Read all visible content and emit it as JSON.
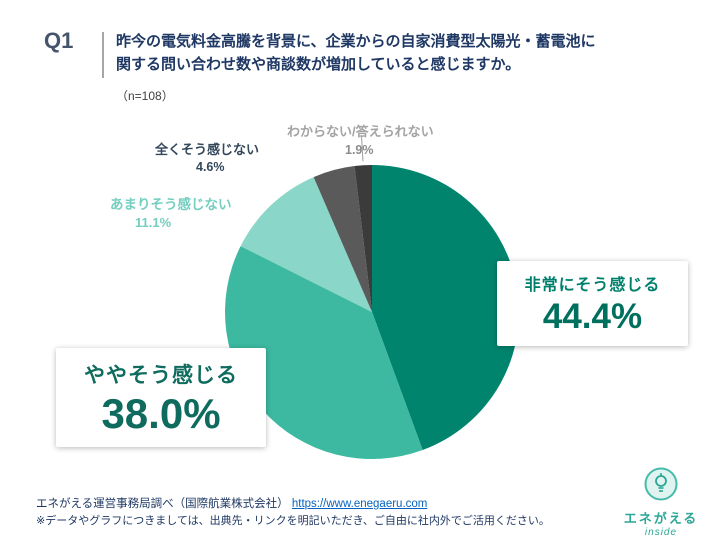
{
  "header": {
    "q_label": "Q1",
    "question": "昨今の電気料金高騰を背景に、企業からの自家消費型太陽光・蓄電池に\n関する問い合わせ数や商談数が増加していると感じますか。",
    "sample_size": "（n=108）"
  },
  "chart_data": {
    "type": "pie",
    "title": "昨今の電気料金高騰を背景に、企業からの自家消費型太陽光・蓄電池に関する問い合わせ数や商談数が増加していると感じますか。",
    "sample_size": "n=108",
    "labels": [
      "非常にそう感じる",
      "ややそう感じる",
      "あまりそう感じない",
      "全くそう感じない",
      "わからない/答えられない"
    ],
    "values": [
      44.4,
      38.0,
      11.1,
      4.6,
      1.9
    ],
    "colors": [
      "#00846E",
      "#3CB9A0",
      "#8AD6C8",
      "#5A5A5A",
      "#3B3B3B"
    ],
    "start_angle_deg": 0,
    "direction": "clockwise",
    "legend_position": "none"
  },
  "callouts": {
    "very": {
      "label": "非常にそう感じる",
      "value": "44.4%"
    },
    "somewhat": {
      "label": "ややそう感じる",
      "value": "38.0%"
    },
    "not_much": {
      "label": "あまりそう感じない",
      "value": "11.1%"
    },
    "not_at_all": {
      "label": "全くそう感じない",
      "value": "4.6%"
    },
    "unknown": {
      "label": "わからない/答えられない",
      "value": "1.9%"
    }
  },
  "footer": {
    "source": "エネがえる運営事務局調べ（国際航業株式会社）",
    "url": "https://www.enegaeru.com",
    "note": "※データやグラフにつきましては、出典先・リンクを明記いただき、ご自由に社内外でご活用ください。"
  },
  "logo": {
    "brand": "エネがえる",
    "sub": "inside"
  }
}
